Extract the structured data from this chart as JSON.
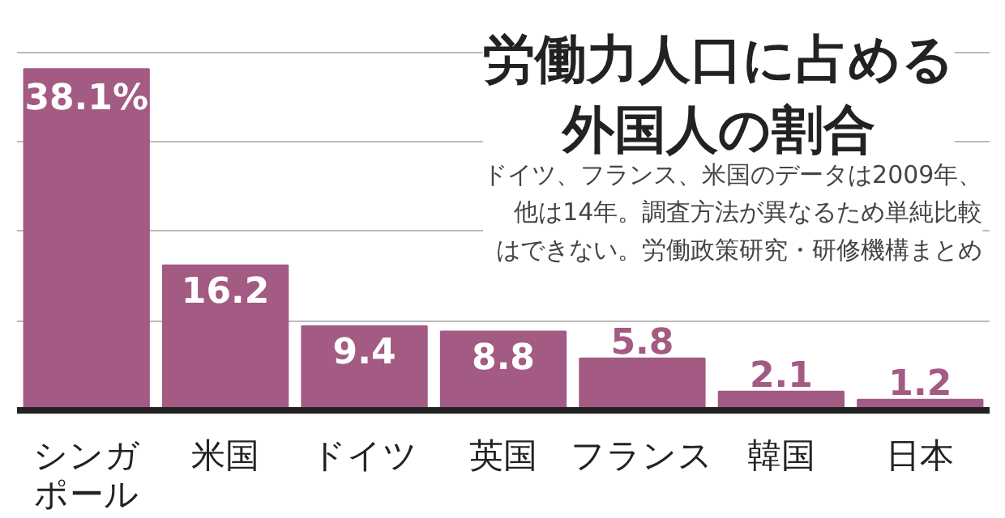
{
  "chart_data": {
    "type": "bar",
    "title": "労働力人口に占める外国人の割合",
    "annotations": [
      "ドイツ、フランス、米国のデータは2009年、他は14年。調査方法が異なるため単純比較はできない。労働政策研究・研修機構まとめ"
    ],
    "categories": [
      "シンガポール",
      "米国",
      "ドイツ",
      "英国",
      "フランス",
      "韓国",
      "日本"
    ],
    "values": [
      38.1,
      16.2,
      9.4,
      8.8,
      5.8,
      2.1,
      1.2
    ],
    "value_labels": [
      "38.1%",
      "16.2",
      "9.4",
      "8.8",
      "5.8",
      "2.1",
      "1.2"
    ],
    "color": "#a35a83",
    "ylim": [
      0,
      43
    ],
    "yticks": [
      {
        "value": 10,
        "label": null
      },
      {
        "value": 20,
        "label": null
      },
      {
        "value": 30,
        "label": null
      },
      {
        "value": 40,
        "label": null
      }
    ],
    "grid": "y"
  }
}
